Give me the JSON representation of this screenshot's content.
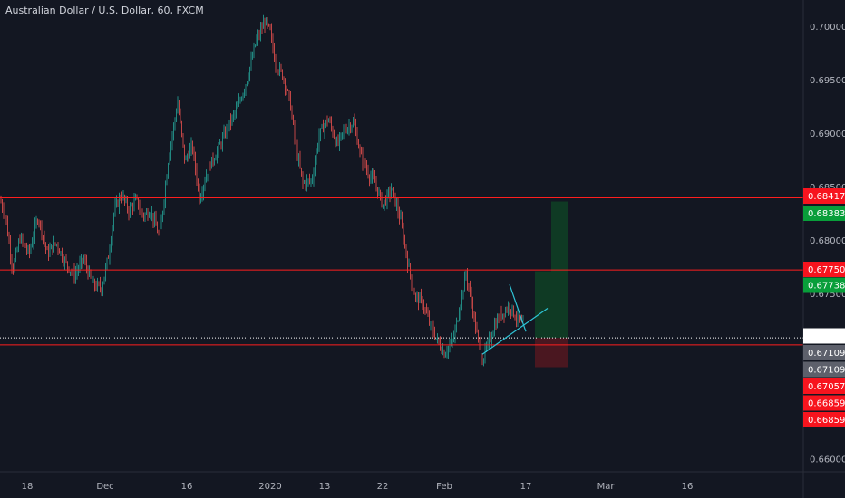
{
  "header": {
    "title": "Australian Dollar / U.S. Dollar, 60, FXCM"
  },
  "colors": {
    "background": "#131722",
    "axis_text": "#b2b5be",
    "candle_up": "#26a69a",
    "candle_down": "#ef5350",
    "level_line": "#ff1e1e",
    "trendline": "#2ec4d6",
    "target_zone": "#0f3a24",
    "stop_zone": "#4a1720",
    "tag_red": "#f7141e",
    "tag_green": "#089e3a",
    "tag_gray": "#5d606b",
    "tag_current": "#ffffff"
  },
  "chart_data": {
    "type": "candlestick",
    "ylim": [
      0.6588,
      0.7018
    ],
    "y_ticks": [
      "0.70000",
      "0.69500",
      "0.69000",
      "0.68500",
      "0.68000",
      "0.67500",
      "0.66000"
    ],
    "x_ticks": [
      "18",
      "Dec",
      "16",
      "2020",
      "13",
      "22",
      "Feb",
      "17",
      "Mar",
      "16"
    ],
    "grid": false,
    "price_path": [
      [
        0,
        0.684
      ],
      [
        6,
        0.6825
      ],
      [
        14,
        0.6775
      ],
      [
        22,
        0.6805
      ],
      [
        32,
        0.679
      ],
      [
        42,
        0.6825
      ],
      [
        52,
        0.679
      ],
      [
        62,
        0.68
      ],
      [
        72,
        0.6782
      ],
      [
        82,
        0.677
      ],
      [
        92,
        0.6785
      ],
      [
        102,
        0.6762
      ],
      [
        112,
        0.6758
      ],
      [
        120,
        0.679
      ],
      [
        126,
        0.683
      ],
      [
        134,
        0.6845
      ],
      [
        142,
        0.683
      ],
      [
        150,
        0.684
      ],
      [
        158,
        0.6825
      ],
      [
        166,
        0.683
      ],
      [
        176,
        0.6805
      ],
      [
        186,
        0.688
      ],
      [
        196,
        0.693
      ],
      [
        204,
        0.6875
      ],
      [
        212,
        0.689
      ],
      [
        220,
        0.6842
      ],
      [
        230,
        0.687
      ],
      [
        240,
        0.6885
      ],
      [
        250,
        0.6905
      ],
      [
        262,
        0.6925
      ],
      [
        272,
        0.695
      ],
      [
        282,
        0.6985
      ],
      [
        292,
        0.7005
      ],
      [
        298,
        0.6995
      ],
      [
        304,
        0.6965
      ],
      [
        312,
        0.6955
      ],
      [
        320,
        0.693
      ],
      [
        326,
        0.689
      ],
      [
        334,
        0.6855
      ],
      [
        344,
        0.6858
      ],
      [
        352,
        0.69
      ],
      [
        362,
        0.6915
      ],
      [
        372,
        0.689
      ],
      [
        380,
        0.6905
      ],
      [
        390,
        0.6912
      ],
      [
        398,
        0.688
      ],
      [
        406,
        0.6865
      ],
      [
        414,
        0.6855
      ],
      [
        422,
        0.6835
      ],
      [
        432,
        0.685
      ],
      [
        442,
        0.682
      ],
      [
        450,
        0.678
      ],
      [
        458,
        0.675
      ],
      [
        466,
        0.6745
      ],
      [
        474,
        0.6725
      ],
      [
        482,
        0.671
      ],
      [
        490,
        0.6698
      ],
      [
        500,
        0.671
      ],
      [
        508,
        0.6745
      ],
      [
        514,
        0.6772
      ],
      [
        520,
        0.6745
      ],
      [
        526,
        0.6715
      ],
      [
        532,
        0.6692
      ],
      [
        538,
        0.6705
      ],
      [
        546,
        0.6725
      ],
      [
        554,
        0.6735
      ],
      [
        562,
        0.6742
      ],
      [
        570,
        0.673
      ],
      [
        578,
        0.6722
      ]
    ],
    "levels": [
      0.68417,
      0.6775,
      0.67057
    ],
    "current_price": 0.67121,
    "trendlines": [
      {
        "from": [
          532,
          0.6697
        ],
        "to": [
          604,
          0.67395
        ]
      },
      {
        "from": [
          562,
          0.67615
        ],
        "to": [
          580,
          0.6718
        ]
      }
    ],
    "position": {
      "x_start": 590,
      "x_mid": 608,
      "x_end": 626,
      "entry": 0.67121,
      "target_inner": 0.67738,
      "target": 0.68383,
      "stop": 0.67057
    },
    "price_tags": [
      {
        "value": "0.68417",
        "y": 0.68417,
        "style": "red"
      },
      {
        "value": "0.68383",
        "y": 0.68383,
        "style": "green"
      },
      {
        "value": "0.67750",
        "y": 0.6775,
        "style": "red"
      },
      {
        "value": "0.67738",
        "y": 0.67738,
        "style": "green"
      },
      {
        "value": "0.67121",
        "y": 0.67121,
        "style": "current"
      },
      {
        "value": "0.67109",
        "y": 0.67109,
        "style": "gray"
      },
      {
        "value": "0.67109",
        "y": 0.67109,
        "style": "gray"
      },
      {
        "value": "0.67057",
        "y": 0.67057,
        "style": "red"
      },
      {
        "value": "0.66859",
        "y": 0.66859,
        "style": "red"
      },
      {
        "value": "0.66859",
        "y": 0.66859,
        "style": "red"
      }
    ]
  }
}
